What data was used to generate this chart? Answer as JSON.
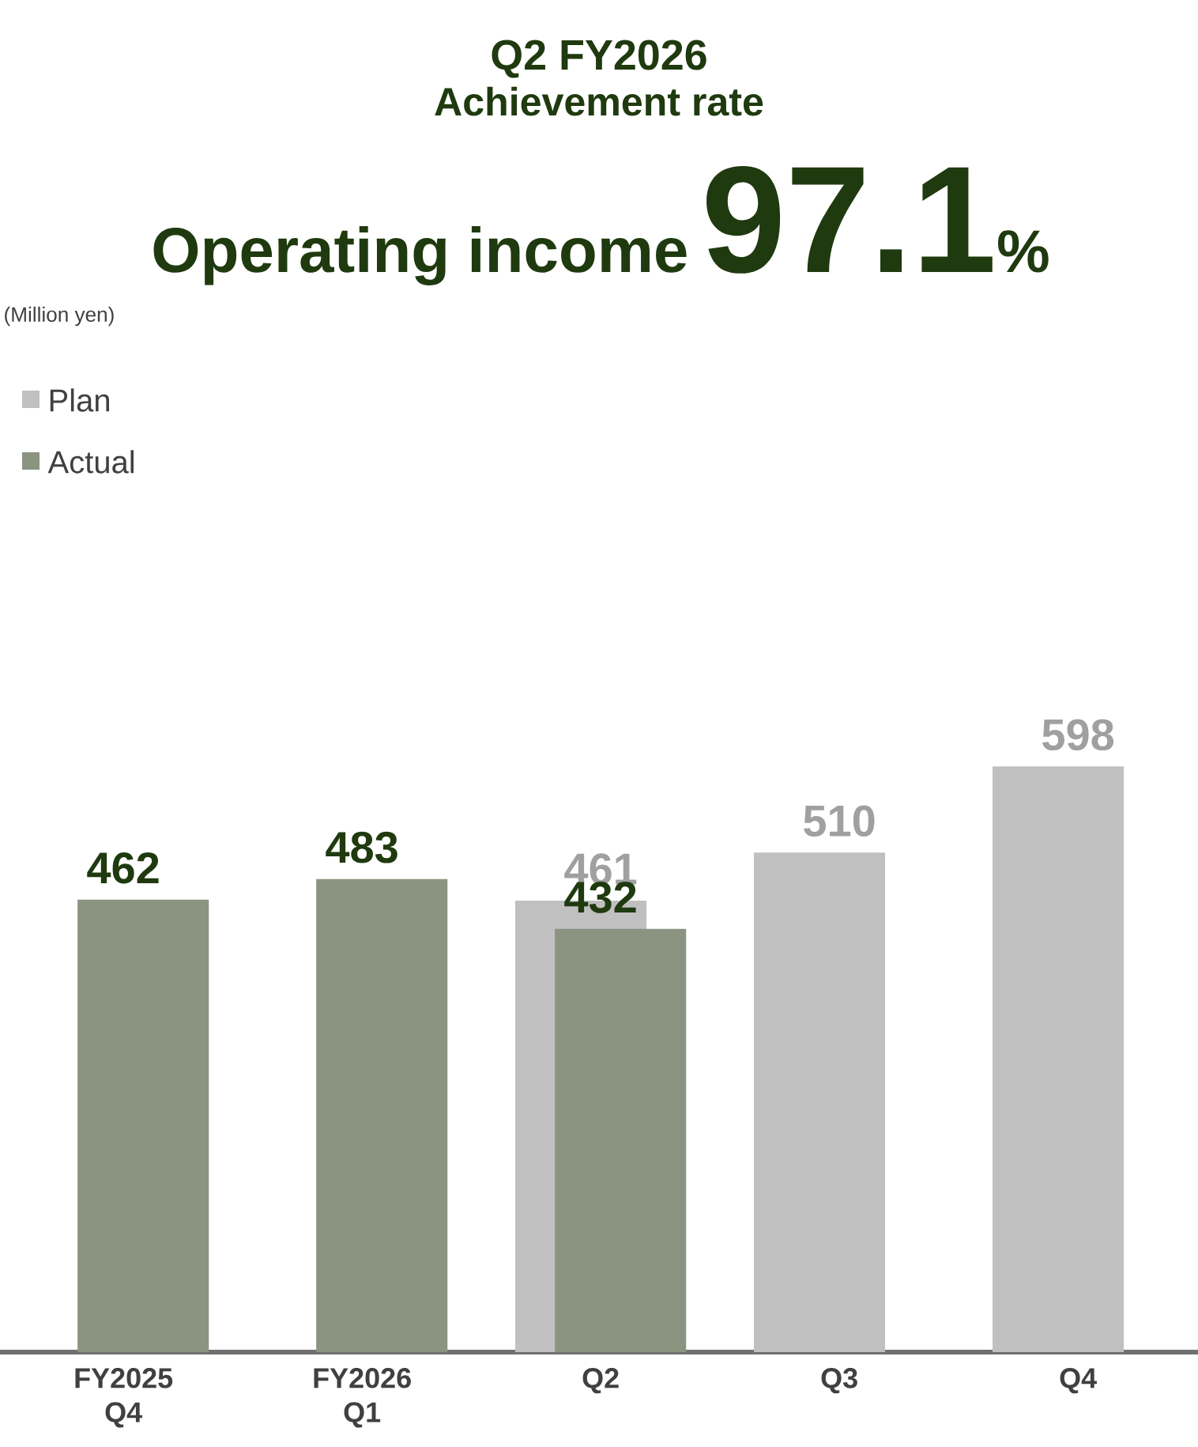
{
  "chart_data": {
    "type": "bar",
    "title": "Q2 FY2026",
    "subtitle": "Achievement rate",
    "annotations": [
      "Operating income",
      "97.1",
      "%",
      "(Million yen)"
    ],
    "categories": [
      "FY2025 Q4",
      "FY2026 Q1",
      "Q2",
      "Q3",
      "Q4"
    ],
    "series": [
      {
        "name": "Plan",
        "color": "#c0c0c0",
        "values": [
          null,
          null,
          461,
          510,
          598
        ]
      },
      {
        "name": "Actual",
        "color": "#8a9480",
        "values": [
          462,
          483,
          432,
          null,
          null
        ]
      }
    ],
    "data_labels": true,
    "legend": "top left",
    "tick_labels": "x"
  }
}
